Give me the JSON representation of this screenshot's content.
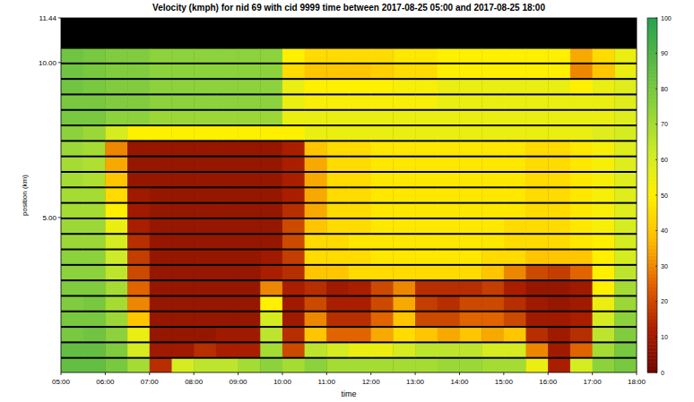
{
  "chart_data": {
    "type": "heatmap",
    "title": "Velocity (kmph) for nid 69 with cid 9999  time between 2017-08-25 05:00 and 2017-08-25 18:00",
    "x_label": "time",
    "y_label": "position (km)",
    "xlim": [
      5,
      18
    ],
    "ylim": [
      0,
      11.44
    ],
    "xticks": [
      {
        "value": 5,
        "label": "05:00"
      },
      {
        "value": 6,
        "label": "06:00"
      },
      {
        "value": 7,
        "label": "07:00"
      },
      {
        "value": 8,
        "label": "08:00"
      },
      {
        "value": 9,
        "label": "09:00"
      },
      {
        "value": 10,
        "label": "10:00"
      },
      {
        "value": 11,
        "label": "11:00"
      },
      {
        "value": 12,
        "label": "12:00"
      },
      {
        "value": 13,
        "label": "13:00"
      },
      {
        "value": 14,
        "label": "14:00"
      },
      {
        "value": 15,
        "label": "15:00"
      },
      {
        "value": 16,
        "label": "16:00"
      },
      {
        "value": 17,
        "label": "17:00"
      },
      {
        "value": 18,
        "label": "18:00"
      }
    ],
    "yticks": [
      {
        "value": 5,
        "label": "5.00"
      },
      {
        "value": 10,
        "label": "10.00"
      },
      11.44
    ],
    "x_edges": [
      5,
      5.5,
      6,
      6.5,
      7,
      7.5,
      8,
      8.5,
      9,
      9.5,
      10,
      10.5,
      11,
      11.5,
      12,
      12.5,
      13,
      13.5,
      14,
      14.5,
      15,
      15.5,
      16,
      16.5,
      17,
      17.5,
      18
    ],
    "y_edges": [
      0,
      0.5,
      1,
      1.5,
      2,
      2.5,
      3,
      3.5,
      4,
      4.5,
      5,
      5.5,
      6,
      6.5,
      7,
      7.5,
      8,
      8.5,
      9,
      9.5,
      10,
      10.5,
      11,
      11.44
    ],
    "values": [
      [
        85,
        85,
        80,
        70,
        15,
        60,
        65,
        65,
        70,
        75,
        70,
        75,
        70,
        70,
        70,
        70,
        70,
        72,
        72,
        70,
        70,
        55,
        12,
        60,
        75,
        80
      ],
      [
        85,
        85,
        78,
        60,
        10,
        10,
        15,
        12,
        12,
        70,
        20,
        65,
        60,
        55,
        55,
        60,
        65,
        65,
        65,
        60,
        60,
        30,
        10,
        25,
        70,
        80
      ],
      [
        80,
        82,
        75,
        55,
        8,
        8,
        8,
        10,
        10,
        65,
        15,
        40,
        25,
        25,
        35,
        45,
        40,
        35,
        40,
        35,
        40,
        15,
        10,
        15,
        65,
        78
      ],
      [
        80,
        80,
        72,
        40,
        8,
        8,
        8,
        8,
        8,
        60,
        10,
        30,
        15,
        15,
        25,
        40,
        20,
        20,
        25,
        25,
        20,
        10,
        10,
        12,
        60,
        75
      ],
      [
        78,
        80,
        70,
        30,
        8,
        8,
        8,
        8,
        8,
        50,
        10,
        20,
        12,
        12,
        20,
        35,
        18,
        15,
        20,
        20,
        15,
        10,
        8,
        10,
        55,
        72
      ],
      [
        78,
        78,
        70,
        25,
        8,
        8,
        8,
        8,
        8,
        30,
        12,
        15,
        10,
        12,
        20,
        30,
        15,
        15,
        15,
        18,
        12,
        8,
        8,
        10,
        50,
        70
      ],
      [
        75,
        75,
        65,
        20,
        8,
        8,
        8,
        8,
        8,
        12,
        15,
        40,
        40,
        45,
        45,
        45,
        45,
        45,
        45,
        40,
        30,
        20,
        18,
        25,
        50,
        65
      ],
      [
        75,
        75,
        62,
        18,
        8,
        8,
        8,
        8,
        8,
        10,
        18,
        45,
        45,
        45,
        48,
        48,
        48,
        48,
        48,
        45,
        45,
        40,
        40,
        40,
        50,
        60
      ],
      [
        72,
        72,
        60,
        15,
        8,
        8,
        8,
        8,
        8,
        8,
        20,
        45,
        45,
        48,
        48,
        48,
        48,
        48,
        48,
        48,
        45,
        45,
        45,
        48,
        50,
        60
      ],
      [
        72,
        72,
        55,
        12,
        8,
        8,
        8,
        8,
        8,
        8,
        20,
        40,
        45,
        45,
        48,
        48,
        48,
        48,
        48,
        48,
        45,
        45,
        45,
        48,
        52,
        60
      ],
      [
        70,
        70,
        50,
        10,
        8,
        8,
        8,
        8,
        8,
        8,
        15,
        35,
        45,
        45,
        48,
        48,
        48,
        48,
        48,
        48,
        48,
        45,
        45,
        48,
        52,
        58
      ],
      [
        70,
        70,
        45,
        10,
        8,
        8,
        8,
        8,
        8,
        8,
        12,
        35,
        45,
        45,
        48,
        48,
        48,
        48,
        48,
        48,
        48,
        45,
        45,
        48,
        52,
        58
      ],
      [
        70,
        68,
        40,
        8,
        8,
        8,
        8,
        8,
        8,
        8,
        12,
        35,
        45,
        45,
        48,
        48,
        48,
        48,
        48,
        48,
        48,
        45,
        45,
        48,
        52,
        58
      ],
      [
        70,
        68,
        35,
        8,
        8,
        8,
        8,
        8,
        8,
        8,
        12,
        35,
        45,
        45,
        48,
        48,
        48,
        48,
        48,
        48,
        48,
        45,
        45,
        48,
        52,
        58
      ],
      [
        72,
        70,
        30,
        8,
        8,
        8,
        8,
        8,
        8,
        8,
        12,
        40,
        45,
        45,
        48,
        48,
        48,
        48,
        48,
        48,
        48,
        45,
        45,
        48,
        52,
        58
      ],
      [
        75,
        72,
        60,
        50,
        50,
        50,
        50,
        50,
        50,
        50,
        50,
        55,
        55,
        55,
        55,
        55,
        55,
        55,
        55,
        55,
        55,
        55,
        55,
        55,
        58,
        60
      ],
      [
        80,
        80,
        75,
        75,
        72,
        72,
        72,
        72,
        72,
        72,
        55,
        55,
        55,
        55,
        55,
        55,
        55,
        55,
        55,
        55,
        55,
        55,
        55,
        55,
        55,
        58
      ],
      [
        80,
        80,
        78,
        78,
        75,
        75,
        75,
        75,
        75,
        75,
        55,
        52,
        52,
        52,
        52,
        52,
        52,
        55,
        55,
        55,
        55,
        55,
        55,
        55,
        55,
        58
      ],
      [
        82,
        80,
        78,
        78,
        75,
        75,
        75,
        75,
        75,
        75,
        55,
        50,
        50,
        50,
        50,
        52,
        52,
        55,
        55,
        55,
        55,
        55,
        55,
        50,
        55,
        58
      ],
      [
        82,
        80,
        78,
        78,
        75,
        75,
        75,
        75,
        75,
        75,
        45,
        40,
        40,
        40,
        42,
        45,
        45,
        50,
        50,
        50,
        50,
        50,
        50,
        30,
        40,
        55
      ],
      [
        82,
        80,
        78,
        78,
        75,
        75,
        75,
        75,
        75,
        75,
        50,
        45,
        45,
        45,
        45,
        48,
        48,
        50,
        50,
        50,
        50,
        50,
        50,
        35,
        45,
        55
      ],
      [
        null,
        null,
        null,
        null,
        null,
        null,
        null,
        null,
        null,
        null,
        null,
        null,
        null,
        null,
        null,
        null,
        null,
        null,
        null,
        null,
        null,
        null,
        null,
        null,
        null,
        null
      ],
      [
        null,
        null,
        null,
        null,
        null,
        null,
        null,
        null,
        null,
        null,
        null,
        null,
        null,
        null,
        null,
        null,
        null,
        null,
        null,
        null,
        null,
        null,
        null,
        null,
        null,
        null
      ]
    ],
    "colorbar": {
      "range": [
        0,
        100
      ],
      "ticks": [
        0,
        10,
        20,
        30,
        40,
        50,
        60,
        70,
        80,
        90,
        100
      ]
    }
  }
}
